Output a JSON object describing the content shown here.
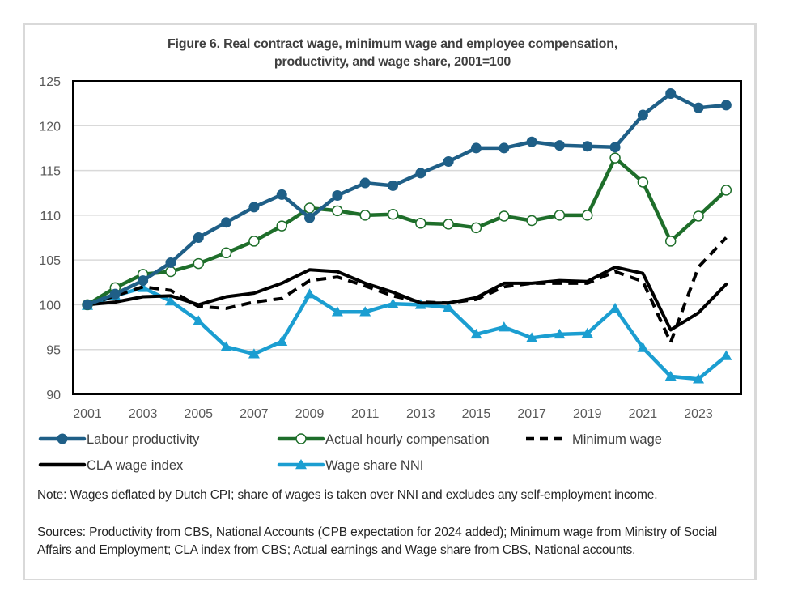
{
  "chart_data": {
    "type": "line",
    "title": "Figure 6. Real contract wage, minimum wage and employee compensation, productivity, and wage share, 2001=100",
    "title_lines": [
      "Figure 6. Real contract wage, minimum wage and employee compensation,",
      "productivity, and wage share, 2001=100"
    ],
    "xlabel": "",
    "ylabel": "",
    "ylim": [
      90,
      125
    ],
    "yticks": [
      90,
      95,
      100,
      105,
      110,
      115,
      120,
      125
    ],
    "x": [
      2001,
      2002,
      2003,
      2004,
      2005,
      2006,
      2007,
      2008,
      2009,
      2010,
      2011,
      2012,
      2013,
      2014,
      2015,
      2016,
      2017,
      2018,
      2019,
      2020,
      2021,
      2022,
      2023,
      2024
    ],
    "xticks": [
      2001,
      2003,
      2005,
      2007,
      2009,
      2011,
      2013,
      2015,
      2017,
      2019,
      2021,
      2023
    ],
    "grid": "horizontal",
    "legend_position": "bottom",
    "series": [
      {
        "name": "Labour productivity",
        "color": "#1f5f87",
        "marker": "filled-circle",
        "dash": "solid",
        "values": [
          100.0,
          101.2,
          102.7,
          104.7,
          107.5,
          109.2,
          110.9,
          112.3,
          109.7,
          112.2,
          113.6,
          113.3,
          114.7,
          116.0,
          117.5,
          117.5,
          118.2,
          117.8,
          117.7,
          117.6,
          121.2,
          123.6,
          122.0,
          122.3
        ]
      },
      {
        "name": "Actual hourly compensation",
        "color": "#1e6e2a",
        "marker": "open-circle",
        "dash": "solid",
        "values": [
          100.0,
          101.9,
          103.4,
          103.7,
          104.6,
          105.8,
          107.1,
          108.8,
          110.8,
          110.5,
          110.0,
          110.1,
          109.1,
          109.0,
          108.6,
          109.9,
          109.4,
          110.0,
          110.0,
          116.4,
          113.7,
          107.1,
          109.9,
          112.8
        ]
      },
      {
        "name": "Minimum wage",
        "color": "#000000",
        "marker": "none",
        "dash": "dashed",
        "values": [
          100.0,
          101.0,
          102.0,
          101.6,
          99.8,
          99.6,
          100.3,
          100.7,
          102.7,
          103.1,
          102.1,
          101.0,
          100.3,
          100.2,
          100.6,
          102.0,
          102.4,
          102.4,
          102.4,
          103.7,
          102.6,
          95.8,
          104.2,
          107.5
        ]
      },
      {
        "name": "CLA wage index",
        "color": "#000000",
        "marker": "none",
        "dash": "solid",
        "values": [
          100.0,
          100.3,
          100.9,
          101.0,
          100.0,
          100.9,
          101.3,
          102.4,
          103.9,
          103.7,
          102.4,
          101.4,
          100.2,
          100.2,
          100.8,
          102.4,
          102.4,
          102.7,
          102.6,
          104.2,
          103.5,
          97.2,
          99.1,
          102.3
        ]
      },
      {
        "name": "Wage share NNI",
        "color": "#1b9ed1",
        "marker": "filled-triangle",
        "dash": "solid",
        "values": [
          99.9,
          101.0,
          101.9,
          100.4,
          98.2,
          95.3,
          94.5,
          95.9,
          101.2,
          99.2,
          99.2,
          100.1,
          100.0,
          99.7,
          96.7,
          97.5,
          96.3,
          96.7,
          96.8,
          99.6,
          95.2,
          92.0,
          91.7,
          94.3
        ]
      }
    ],
    "legend": [
      {
        "name": "Labour productivity",
        "row": 1,
        "col": 1
      },
      {
        "name": "Actual hourly compensation",
        "row": 1,
        "col": 2
      },
      {
        "name": "Minimum wage",
        "row": 1,
        "col": 3
      },
      {
        "name": "CLA wage index",
        "row": 2,
        "col": 1
      },
      {
        "name": "Wage share NNI",
        "row": 2,
        "col": 2
      }
    ]
  },
  "notes": {
    "note": "Note: Wages deflated by Dutch CPI; share of wages is taken over NNI and excludes any self-employment income.",
    "sources": "Sources: Productivity from CBS, National Accounts (CPB expectation for 2024 added); Minimum wage from Ministry of Social Affairs and Employment; CLA index from CBS; Actual earnings and Wage share from CBS, National accounts."
  }
}
